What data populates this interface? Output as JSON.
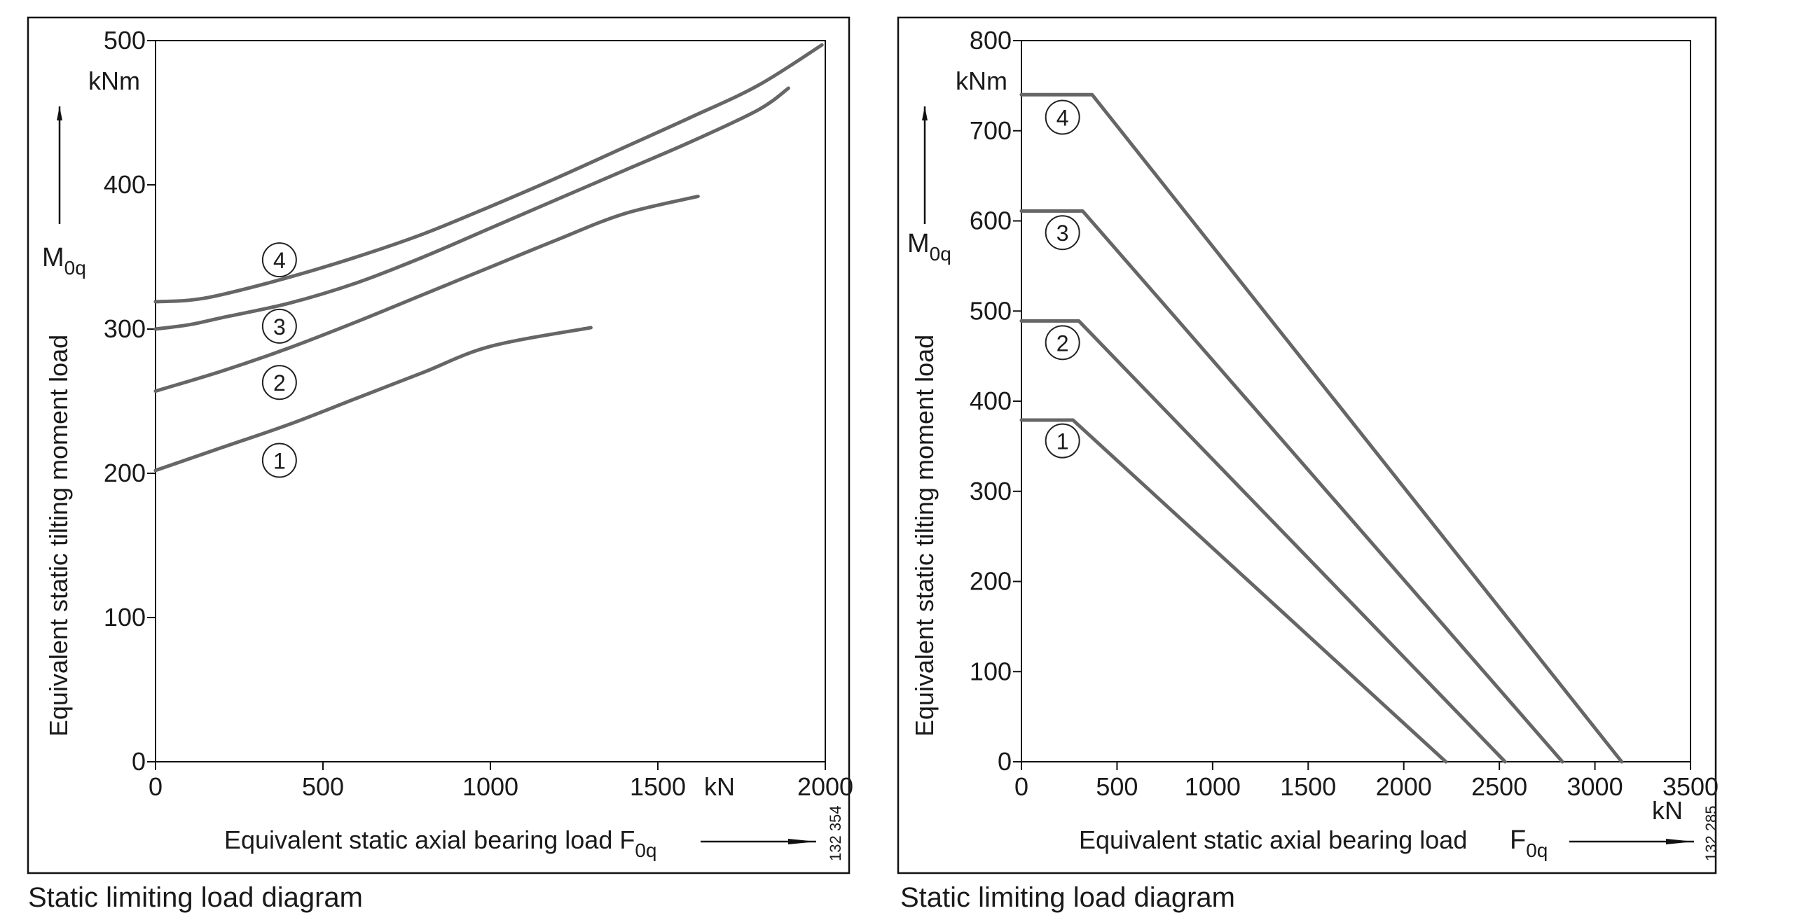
{
  "figure_caption_left": "Static limiting load diagram",
  "figure_caption_right": "Static limiting load diagram",
  "chart_data": [
    {
      "type": "line",
      "title": "",
      "ylabel": "Equivalent static tilting moment load",
      "y_symbol": "M",
      "y_symbol_sub": "0q",
      "y_unit": "kNm",
      "xlabel": "Equivalent static axial bearing load F",
      "x_symbol_sub": "0q",
      "x_unit": "kN",
      "xlim": [
        0,
        2000
      ],
      "ylim": [
        0,
        500
      ],
      "x_ticks": [
        0,
        500,
        1000,
        1500,
        2000
      ],
      "y_ticks": [
        0,
        100,
        200,
        300,
        400,
        500
      ],
      "x_tick_labels": [
        "0",
        "500",
        "1000",
        "1500",
        "2000"
      ],
      "y_tick_labels": [
        "0",
        "100",
        "200",
        "300",
        "400",
        "500"
      ],
      "figure_number": "132 354",
      "grid": false,
      "series": [
        {
          "name": "1",
          "points": [
            [
              0,
              202
            ],
            [
              100,
              210
            ],
            [
              200,
              218
            ],
            [
              400,
              234
            ],
            [
              600,
              252
            ],
            [
              800,
              270
            ],
            [
              1000,
              288
            ],
            [
              1300,
              301
            ]
          ]
        },
        {
          "name": "2",
          "points": [
            [
              0,
              257
            ],
            [
              200,
              271
            ],
            [
              400,
              287
            ],
            [
              600,
              305
            ],
            [
              800,
              324
            ],
            [
              1000,
              343
            ],
            [
              1200,
              362
            ],
            [
              1400,
              380
            ],
            [
              1620,
              392
            ]
          ]
        },
        {
          "name": "3",
          "points": [
            [
              0,
              300
            ],
            [
              100,
              303
            ],
            [
              200,
              308
            ],
            [
              400,
              318
            ],
            [
              600,
              332
            ],
            [
              800,
              350
            ],
            [
              1000,
              370
            ],
            [
              1200,
              390
            ],
            [
              1400,
              410
            ],
            [
              1600,
              430
            ],
            [
              1800,
              452
            ],
            [
              1890,
              467
            ]
          ]
        },
        {
          "name": "4",
          "points": [
            [
              0,
              319
            ],
            [
              100,
              320
            ],
            [
              200,
              324
            ],
            [
              400,
              336
            ],
            [
              600,
              350
            ],
            [
              800,
              366
            ],
            [
              1000,
              385
            ],
            [
              1200,
              405
            ],
            [
              1400,
              426
            ],
            [
              1600,
              447
            ],
            [
              1800,
              469
            ],
            [
              1990,
              497
            ]
          ]
        }
      ],
      "markers": [
        {
          "label": "1",
          "x": 370,
          "y": 209
        },
        {
          "label": "2",
          "x": 370,
          "y": 263
        },
        {
          "label": "3",
          "x": 370,
          "y": 302
        },
        {
          "label": "4",
          "x": 370,
          "y": 348
        }
      ]
    },
    {
      "type": "line",
      "title": "",
      "ylabel": "Equivalent static tilting moment load",
      "y_symbol": "M",
      "y_symbol_sub": "0q",
      "y_unit": "kNm",
      "xlabel": "Equivalent static axial bearing load",
      "x_symbol": "F",
      "x_symbol_sub": "0q",
      "x_unit": "kN",
      "xlim": [
        0,
        3500
      ],
      "ylim": [
        0,
        800
      ],
      "x_ticks": [
        0,
        500,
        1000,
        1500,
        2000,
        2500,
        3000,
        3500
      ],
      "y_ticks": [
        0,
        100,
        200,
        300,
        400,
        500,
        600,
        700,
        800
      ],
      "x_tick_labels": [
        "0",
        "500",
        "1000",
        "1500",
        "2000",
        "2500",
        "3000",
        "3500"
      ],
      "y_tick_labels": [
        "0",
        "100",
        "200",
        "300",
        "400",
        "500",
        "600",
        "700",
        "800"
      ],
      "figure_number": "132 285",
      "grid": false,
      "series": [
        {
          "name": "1",
          "points": [
            [
              0,
              379
            ],
            [
              270,
              379
            ],
            [
              2220,
              0
            ]
          ]
        },
        {
          "name": "2",
          "points": [
            [
              0,
              489
            ],
            [
              300,
              489
            ],
            [
              2530,
              0
            ]
          ]
        },
        {
          "name": "3",
          "points": [
            [
              0,
              611
            ],
            [
              320,
              611
            ],
            [
              2830,
              0
            ]
          ]
        },
        {
          "name": "4",
          "points": [
            [
              0,
              740
            ],
            [
              370,
              740
            ],
            [
              3140,
              0
            ]
          ]
        }
      ],
      "markers": [
        {
          "label": "1",
          "x": 215,
          "y": 356
        },
        {
          "label": "2",
          "x": 215,
          "y": 465
        },
        {
          "label": "3",
          "x": 215,
          "y": 587
        },
        {
          "label": "4",
          "x": 215,
          "y": 715
        }
      ]
    }
  ]
}
